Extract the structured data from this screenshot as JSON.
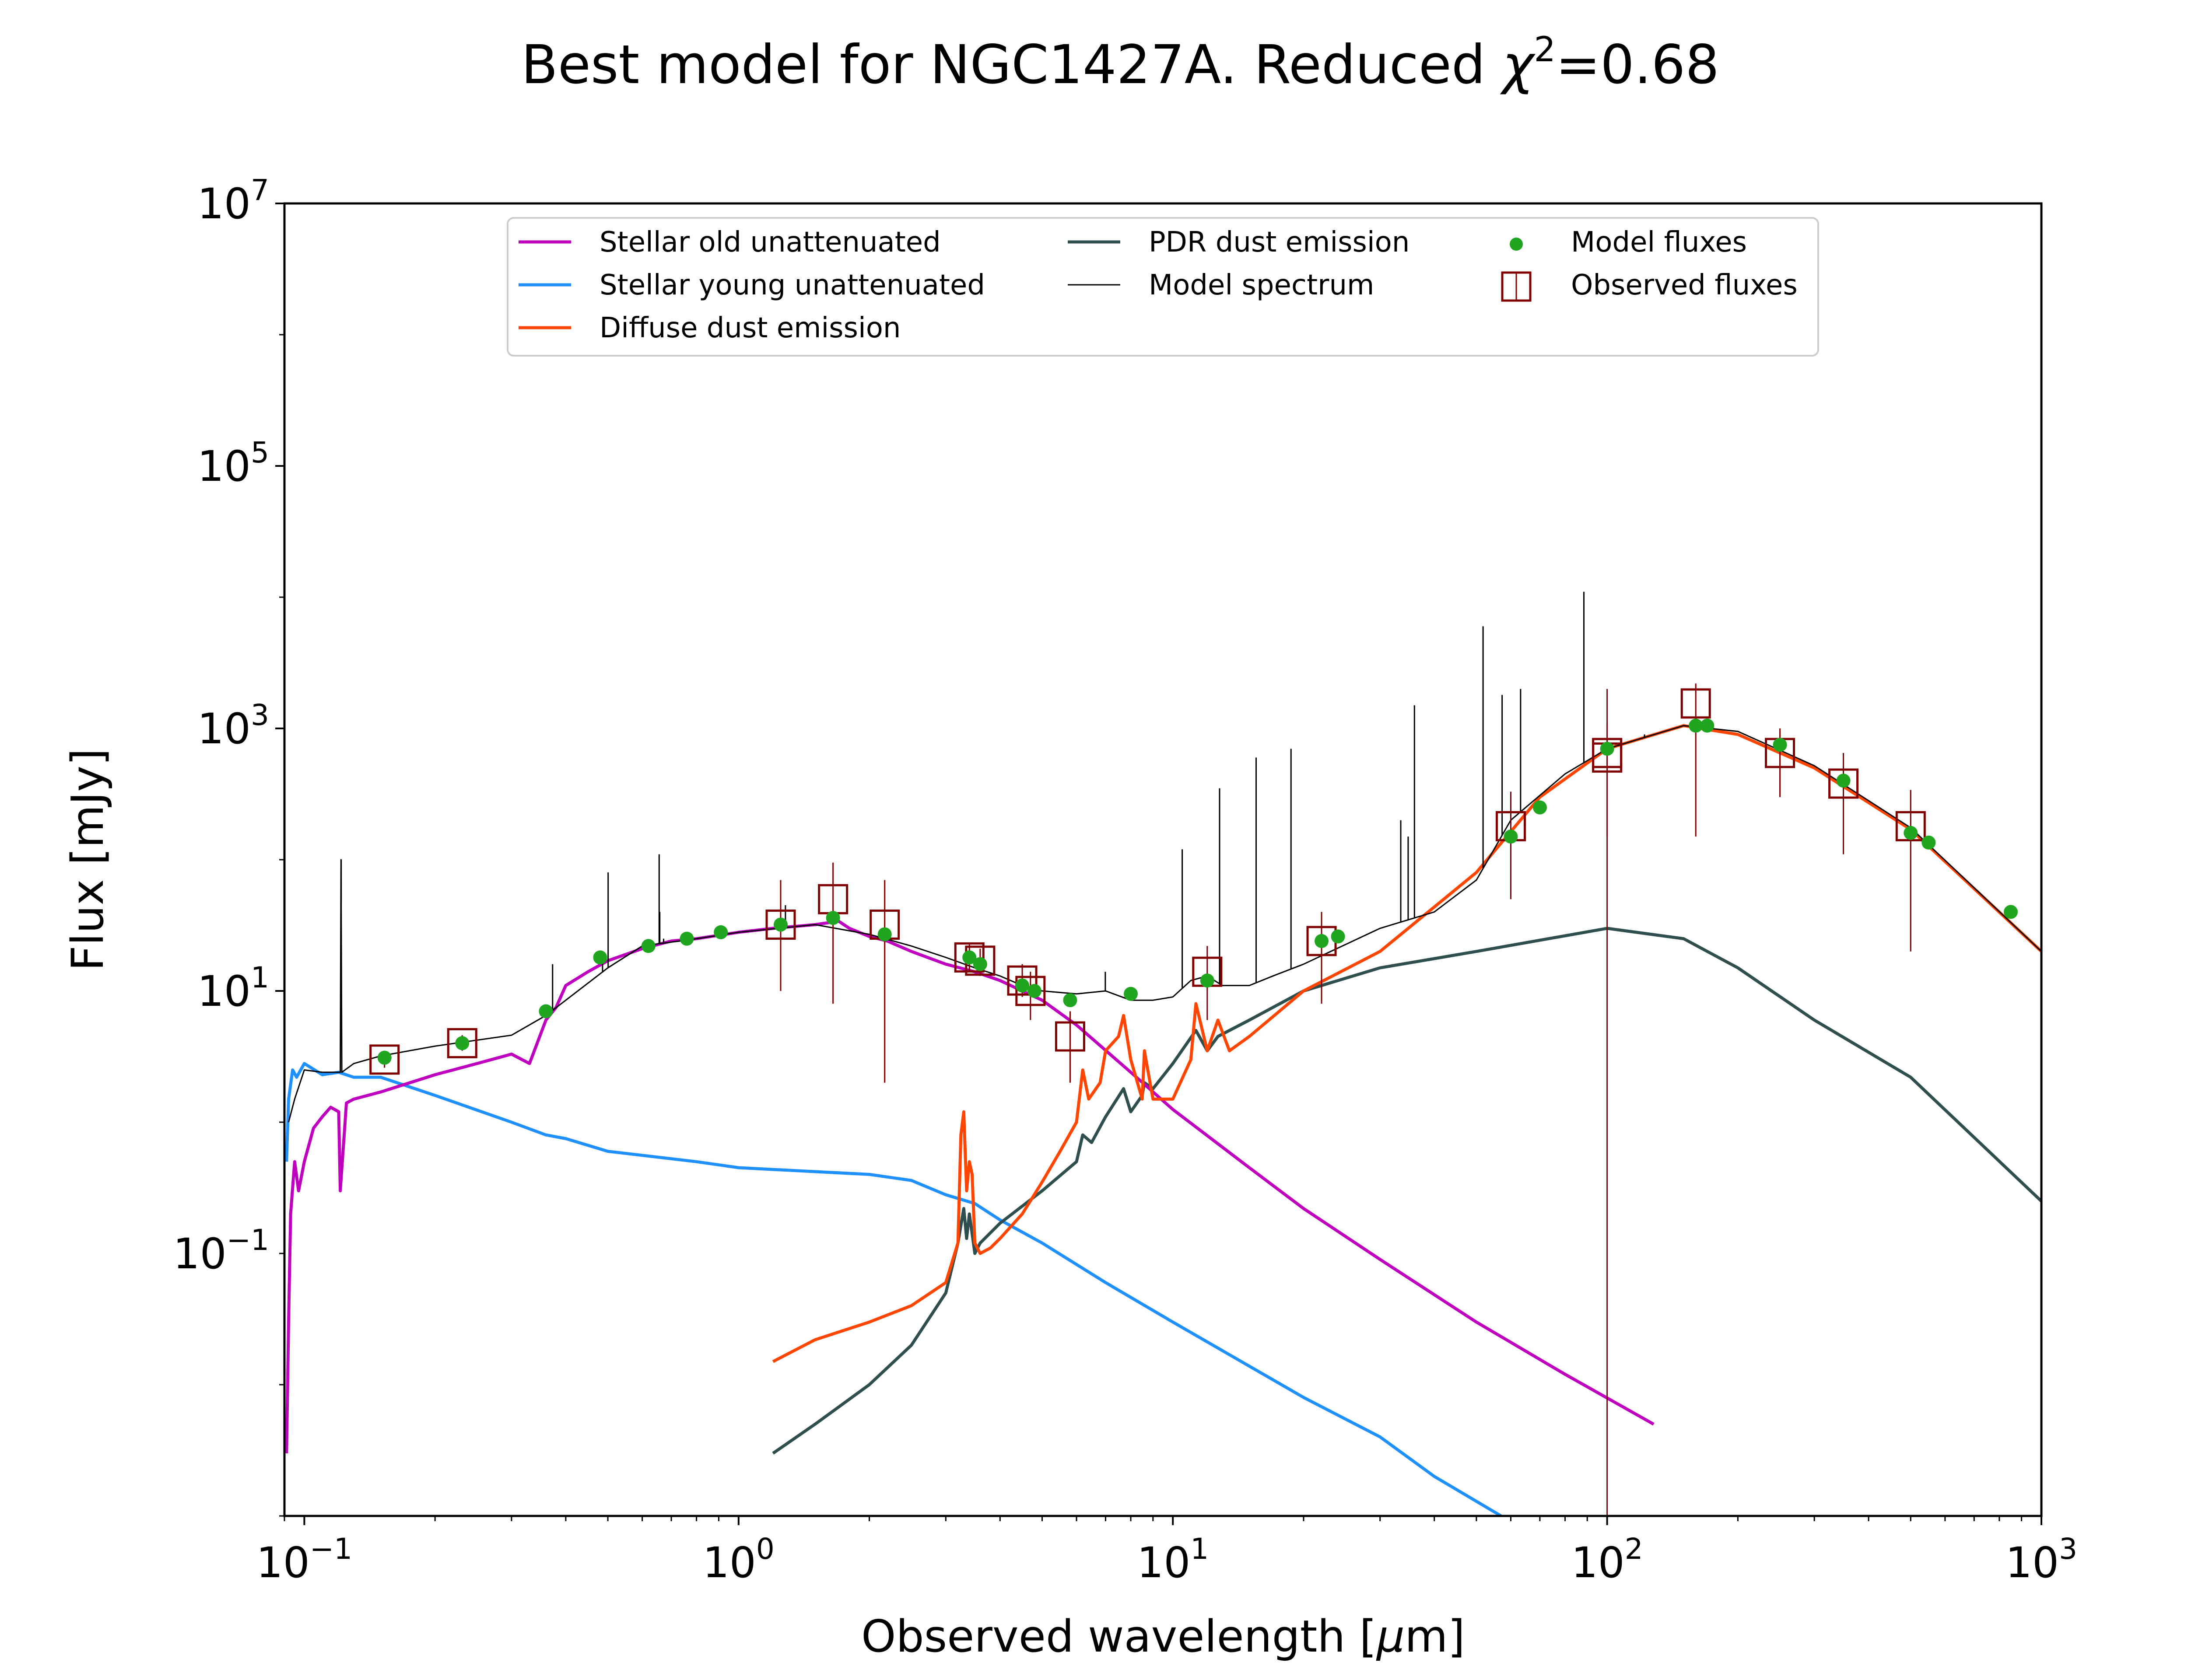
{
  "chart_data": {
    "type": "line",
    "title": "Best model for NGC1427A. Reduced χ²=0.68",
    "title_parts": {
      "text": "Best model for NGC1427A. Reduced ",
      "chi": "χ",
      "sup": "2",
      "rest": "=0.68"
    },
    "xlabel": "Observed wavelength [μm]",
    "xlabel_parts": {
      "text": "Observed wavelength [",
      "mu": "μ",
      "rest": "m]"
    },
    "ylabel": "Flux [mJy]",
    "xscale": "log",
    "yscale": "log",
    "xlim": [
      0.09,
      1000
    ],
    "ylim": [
      0.001,
      10000000
    ],
    "xticks": [
      {
        "value": 0.1,
        "base": "10",
        "exp": "−1"
      },
      {
        "value": 1,
        "base": "10",
        "exp": "0"
      },
      {
        "value": 10,
        "base": "10",
        "exp": "1"
      },
      {
        "value": 100,
        "base": "10",
        "exp": "2"
      },
      {
        "value": 1000,
        "base": "10",
        "exp": "3"
      }
    ],
    "yticks": [
      {
        "value": 0.1,
        "base": "10",
        "exp": "−1"
      },
      {
        "value": 10,
        "base": "10",
        "exp": "1"
      },
      {
        "value": 1000,
        "base": "10",
        "exp": "3"
      },
      {
        "value": 100000,
        "base": "10",
        "exp": "5"
      },
      {
        "value": 10000000,
        "base": "10",
        "exp": "7"
      }
    ],
    "grid": false,
    "legend_position": "top-center",
    "colors": {
      "stellar_old": "#bf00bf",
      "stellar_young": "#1e90ff",
      "diffuse_dust": "#ff4500",
      "pdr_dust": "#2f4f4f",
      "model_spectrum": "#000000",
      "model_fluxes": "#1fa51f",
      "observed_fluxes": "#800000"
    },
    "series": [
      {
        "name": "Stellar old unattenuated",
        "type": "line",
        "color": "#bf00bf",
        "x": [
          0.091,
          0.092,
          0.093,
          0.095,
          0.097,
          0.1,
          0.105,
          0.11,
          0.115,
          0.12,
          0.121,
          0.125,
          0.13,
          0.15,
          0.2,
          0.25,
          0.3,
          0.33,
          0.36,
          0.38,
          0.4,
          0.45,
          0.5,
          0.6,
          0.7,
          0.8,
          1.0,
          1.2,
          1.5,
          1.7,
          1.8,
          2.0,
          2.2,
          2.5,
          3.0,
          3.5,
          4.0,
          4.5,
          5.0,
          6.0,
          8.0,
          10,
          15,
          20,
          30,
          50,
          80,
          128
        ],
        "y": [
          0.003,
          0.03,
          0.2,
          0.5,
          0.3,
          0.5,
          0.9,
          1.1,
          1.3,
          1.2,
          0.3,
          1.4,
          1.5,
          1.7,
          2.3,
          2.8,
          3.3,
          2.8,
          6,
          7.5,
          11,
          14,
          17,
          21,
          24,
          25,
          28,
          30,
          32,
          34,
          30,
          26,
          24,
          20,
          16,
          14,
          12,
          10,
          8.5,
          5.5,
          2.4,
          1.25,
          0.45,
          0.22,
          0.09,
          0.03,
          0.012,
          0.005
        ]
      },
      {
        "name": "Stellar young unattenuated",
        "type": "line",
        "color": "#1e90ff",
        "x": [
          0.091,
          0.092,
          0.094,
          0.096,
          0.1,
          0.11,
          0.12,
          0.13,
          0.15,
          0.2,
          0.3,
          0.36,
          0.4,
          0.5,
          0.8,
          1.0,
          1.5,
          2.0,
          2.5,
          3.0,
          3.5,
          4.0,
          5.0,
          7.0,
          10,
          20,
          30,
          40,
          57
        ],
        "y": [
          0.5,
          1.5,
          2.5,
          2.2,
          2.8,
          2.3,
          2.4,
          2.2,
          2.2,
          1.6,
          1.0,
          0.8,
          0.75,
          0.6,
          0.5,
          0.45,
          0.42,
          0.4,
          0.36,
          0.28,
          0.24,
          0.18,
          0.12,
          0.06,
          0.03,
          0.008,
          0.004,
          0.002,
          0.001
        ]
      },
      {
        "name": "Diffuse dust emission",
        "type": "line",
        "color": "#ff4500",
        "x": [
          1.2,
          1.5,
          2.0,
          2.5,
          3.0,
          3.2,
          3.25,
          3.3,
          3.35,
          3.4,
          3.45,
          3.5,
          3.6,
          3.8,
          4.0,
          4.5,
          5.0,
          5.5,
          6.0,
          6.2,
          6.4,
          6.8,
          7.0,
          7.5,
          7.7,
          8.0,
          8.5,
          8.6,
          9.0,
          10,
          11,
          11.3,
          12,
          12.7,
          13.5,
          15,
          20,
          30,
          50,
          70,
          100,
          150,
          200,
          300,
          500,
          1000
        ],
        "y": [
          0.015,
          0.022,
          0.03,
          0.04,
          0.06,
          0.12,
          0.8,
          1.2,
          0.3,
          0.5,
          0.4,
          0.12,
          0.1,
          0.11,
          0.13,
          0.2,
          0.35,
          0.6,
          1.0,
          2.5,
          1.5,
          2.0,
          3.5,
          4.5,
          6.5,
          3.0,
          1.5,
          3.5,
          1.5,
          1.5,
          3.0,
          8.0,
          3.5,
          6.0,
          3.5,
          4.5,
          10,
          20,
          80,
          300,
          700,
          1050,
          900,
          500,
          170,
          20
        ]
      },
      {
        "name": "PDR dust emission",
        "type": "line",
        "color": "#2f4f4f",
        "x": [
          1.2,
          1.5,
          2.0,
          2.5,
          3.0,
          3.2,
          3.3,
          3.35,
          3.4,
          3.5,
          3.6,
          4.0,
          5.0,
          6.0,
          6.2,
          6.5,
          7.0,
          7.7,
          8.0,
          8.5,
          8.6,
          9.0,
          10,
          11.3,
          12,
          12.7,
          15,
          20,
          30,
          50,
          100,
          150,
          200,
          300,
          500,
          1000
        ],
        "y": [
          0.003,
          0.005,
          0.01,
          0.02,
          0.05,
          0.12,
          0.22,
          0.13,
          0.2,
          0.1,
          0.12,
          0.17,
          0.3,
          0.5,
          0.8,
          0.7,
          1.1,
          1.8,
          1.2,
          1.6,
          2.0,
          1.8,
          2.8,
          5.0,
          3.5,
          4.5,
          6.0,
          10,
          15,
          20,
          30,
          25,
          15,
          6,
          2.2,
          0.25
        ]
      },
      {
        "name": "Model spectrum",
        "type": "line",
        "color": "#000000",
        "x": [
          0.092,
          0.095,
          0.1,
          0.11,
          0.121,
          0.1215,
          0.122,
          0.13,
          0.15,
          0.2,
          0.3,
          0.36,
          0.4,
          0.5,
          0.6,
          0.8,
          1.0,
          1.5,
          2.0,
          2.5,
          3.0,
          3.5,
          4.0,
          4.5,
          5.0,
          6.0,
          7.0,
          8.0,
          9.0,
          10,
          11,
          12,
          13,
          15,
          17,
          20,
          30,
          40,
          50,
          60,
          80,
          100,
          150,
          200,
          300,
          500,
          1000
        ],
        "y": [
          1.0,
          1.5,
          2.5,
          2.4,
          2.4,
          100,
          2.4,
          2.8,
          3.2,
          3.8,
          4.6,
          6.5,
          8.5,
          15,
          22,
          25,
          28,
          32,
          27,
          22,
          18,
          15,
          13,
          11,
          10,
          9.5,
          10,
          8.5,
          8.5,
          9,
          12,
          13,
          11,
          11,
          13,
          16,
          30,
          40,
          70,
          200,
          450,
          700,
          1050,
          950,
          520,
          175,
          20
        ]
      }
    ],
    "emission_lines": [
      {
        "x": 0.1216,
        "y_top": 100
      },
      {
        "x": 0.373,
        "y_top": 16
      },
      {
        "x": 0.4861,
        "y_top": 20
      },
      {
        "x": 0.5007,
        "y_top": 80
      },
      {
        "x": 0.6563,
        "y_top": 110
      },
      {
        "x": 0.6584,
        "y_top": 40
      },
      {
        "x": 0.672,
        "y_top": 25
      },
      {
        "x": 1.282,
        "y_top": 45
      },
      {
        "x": 6.99,
        "y_top": 14
      },
      {
        "x": 10.51,
        "y_top": 120
      },
      {
        "x": 12.81,
        "y_top": 350
      },
      {
        "x": 15.55,
        "y_top": 600
      },
      {
        "x": 18.71,
        "y_top": 700
      },
      {
        "x": 33.48,
        "y_top": 200
      },
      {
        "x": 34.82,
        "y_top": 150
      },
      {
        "x": 36.0,
        "y_top": 1500
      },
      {
        "x": 51.8,
        "y_top": 6000
      },
      {
        "x": 57.3,
        "y_top": 1800
      },
      {
        "x": 63.2,
        "y_top": 2000
      },
      {
        "x": 88.4,
        "y_top": 11000
      },
      {
        "x": 121.9,
        "y_top": 900
      }
    ],
    "model_fluxes": {
      "name": "Model fluxes",
      "color": "#1fa51f",
      "x": [
        0.153,
        0.231,
        0.36,
        0.48,
        0.62,
        0.76,
        0.91,
        1.25,
        1.65,
        2.17,
        3.4,
        3.6,
        4.5,
        4.8,
        5.8,
        8.0,
        12,
        22,
        24,
        60,
        70,
        100,
        160,
        170,
        250,
        350,
        500,
        550,
        850
      ],
      "y": [
        3.1,
        4.0,
        7.0,
        18,
        22,
        25,
        28,
        32,
        36,
        27,
        18,
        16,
        11,
        10,
        8.5,
        9.5,
        12,
        24,
        26,
        150,
        250,
        700,
        1050,
        1050,
        750,
        400,
        160,
        135,
        40
      ]
    },
    "observed_fluxes": {
      "name": "Observed fluxes",
      "color": "#800000",
      "points": [
        {
          "x": 0.153,
          "y": 3.0,
          "ylo": 2.6,
          "yhi": 3.5
        },
        {
          "x": 0.231,
          "y": 4.0,
          "ylo": 3.5,
          "yhi": 4.6
        },
        {
          "x": 1.25,
          "y": 32,
          "ylo": 10,
          "yhi": 70
        },
        {
          "x": 1.65,
          "y": 50,
          "ylo": 8,
          "yhi": 95
        },
        {
          "x": 2.17,
          "y": 32,
          "ylo": 2,
          "yhi": 70
        },
        {
          "x": 3.4,
          "y": 18,
          "ylo": 14,
          "yhi": 23
        },
        {
          "x": 3.6,
          "y": 17,
          "ylo": 13,
          "yhi": 21
        },
        {
          "x": 4.5,
          "y": 12,
          "ylo": 9,
          "yhi": 16
        },
        {
          "x": 4.7,
          "y": 10,
          "ylo": 6,
          "yhi": 14
        },
        {
          "x": 5.8,
          "y": 4.5,
          "ylo": 2,
          "yhi": 7
        },
        {
          "x": 12,
          "y": 14,
          "ylo": 6,
          "yhi": 22
        },
        {
          "x": 22,
          "y": 24,
          "ylo": 8,
          "yhi": 40
        },
        {
          "x": 60,
          "y": 180,
          "ylo": 50,
          "yhi": 330
        },
        {
          "x": 100,
          "y": 600,
          "ylo": 0.001,
          "yhi": 2000
        },
        {
          "x": 100,
          "y": 650,
          "ylo": 150,
          "yhi": 1100
        },
        {
          "x": 160,
          "y": 1550,
          "ylo": 150,
          "yhi": 2200
        },
        {
          "x": 250,
          "y": 650,
          "ylo": 300,
          "yhi": 1000
        },
        {
          "x": 350,
          "y": 380,
          "ylo": 110,
          "yhi": 650
        },
        {
          "x": 500,
          "y": 180,
          "ylo": 20,
          "yhi": 340
        }
      ]
    },
    "legend": [
      {
        "label": "Stellar old unattenuated",
        "kind": "line",
        "color": "#bf00bf",
        "width": 2
      },
      {
        "label": "Stellar young unattenuated",
        "kind": "line",
        "color": "#1e90ff",
        "width": 2
      },
      {
        "label": "Diffuse dust emission",
        "kind": "line",
        "color": "#ff4500",
        "width": 2
      },
      {
        "label": "PDR dust emission",
        "kind": "line",
        "color": "#2f4f4f",
        "width": 2
      },
      {
        "label": "Model spectrum",
        "kind": "line",
        "color": "#000000",
        "width": 1
      },
      {
        "label": "Model fluxes",
        "kind": "dot",
        "color": "#1fa51f"
      },
      {
        "label": "Observed fluxes",
        "kind": "box",
        "color": "#800000"
      }
    ]
  }
}
